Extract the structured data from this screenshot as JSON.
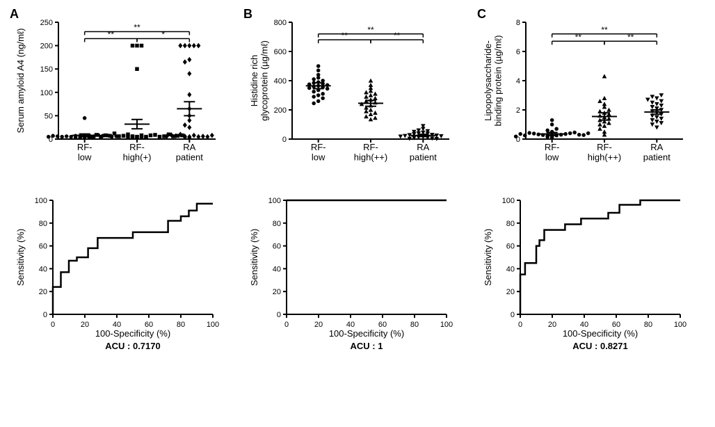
{
  "panels": {
    "A": {
      "label": "A",
      "scatter": {
        "type": "scatter",
        "ylabel": "Serum amyloid A4 (ng/mℓ)",
        "categories": [
          "RF-\nlow",
          "RF-\nhigh(+)",
          "RA\npatient"
        ],
        "ylim": [
          0,
          250
        ],
        "ytick": 50,
        "sig_lines": [
          {
            "from": 0,
            "to": 2,
            "y": 230,
            "label": "**"
          },
          {
            "from": 0,
            "to": 1,
            "y": 215,
            "label": "**"
          },
          {
            "from": 1,
            "to": 2,
            "y": 215,
            "label": "*"
          }
        ],
        "means": [
          8,
          32,
          65
        ],
        "sem": [
          3,
          10,
          15
        ],
        "markers": [
          "circle",
          "square",
          "diamond"
        ],
        "data": [
          [
            5,
            6,
            4,
            8,
            45,
            3,
            7,
            6,
            5,
            9,
            4,
            6,
            7,
            5,
            3,
            8,
            6,
            5,
            4,
            7,
            6,
            5
          ],
          [
            5,
            6,
            4,
            8,
            200,
            200,
            200,
            10,
            150,
            5,
            7,
            8,
            6,
            9,
            4,
            3,
            12,
            5,
            7,
            6,
            8,
            10,
            5,
            6,
            9,
            7,
            5,
            4,
            3,
            8
          ],
          [
            200,
            200,
            200,
            200,
            170,
            140,
            95,
            65,
            40,
            25,
            5,
            3,
            6,
            8,
            10,
            4,
            5,
            7,
            6,
            9,
            165,
            200,
            50,
            30,
            5,
            6,
            8
          ]
        ]
      },
      "roc": {
        "type": "line",
        "xlabel": "100-Specificity (%)",
        "ylabel": "Sensitivity (%)",
        "ylim": [
          0,
          100
        ],
        "xlim": [
          0,
          100
        ],
        "tick": 20,
        "auc_label": "ACU : 0.7170",
        "points": [
          [
            0,
            0
          ],
          [
            0,
            24
          ],
          [
            5,
            37
          ],
          [
            10,
            47
          ],
          [
            15,
            50
          ],
          [
            22,
            58
          ],
          [
            28,
            67
          ],
          [
            45,
            67
          ],
          [
            50,
            72
          ],
          [
            70,
            72
          ],
          [
            72,
            82
          ],
          [
            80,
            86
          ],
          [
            85,
            91
          ],
          [
            90,
            97
          ],
          [
            100,
            97
          ]
        ]
      }
    },
    "B": {
      "label": "B",
      "scatter": {
        "type": "scatter",
        "ylabel": "Histidine rich\nglycoprotein (µg/mℓ)",
        "categories": [
          "RF-\nlow",
          "RF-\nhigh(++)",
          "RA\npatient"
        ],
        "ylim": [
          0,
          800
        ],
        "ytick": 200,
        "sig_lines": [
          {
            "from": 0,
            "to": 2,
            "y": 720,
            "label": "**"
          },
          {
            "from": 0,
            "to": 1,
            "y": 680,
            "label": "**"
          },
          {
            "from": 1,
            "to": 2,
            "y": 680,
            "label": "**"
          }
        ],
        "means": [
          365,
          245,
          25
        ],
        "sem": [
          20,
          20,
          8
        ],
        "markers": [
          "circle",
          "triangle",
          "triangle-down"
        ],
        "data": [
          [
            500,
            470,
            440,
            420,
            410,
            400,
            390,
            385,
            380,
            375,
            370,
            365,
            360,
            355,
            350,
            345,
            335,
            325,
            310,
            300,
            290,
            280,
            260,
            245
          ],
          [
            400,
            370,
            350,
            330,
            320,
            310,
            300,
            290,
            280,
            270,
            260,
            250,
            240,
            230,
            215,
            200,
            190,
            180,
            170,
            155,
            145,
            135
          ],
          [
            90,
            70,
            60,
            55,
            50,
            45,
            40,
            38,
            35,
            30,
            28,
            25,
            22,
            20,
            18,
            15,
            12,
            10,
            8,
            5,
            3,
            2
          ]
        ]
      },
      "roc": {
        "type": "line",
        "xlabel": "100-Specificity (%)",
        "ylabel": "Sensitivity (%)",
        "ylim": [
          0,
          100
        ],
        "xlim": [
          0,
          100
        ],
        "tick": 20,
        "auc_label": "ACU : 1",
        "points": [
          [
            0,
            100
          ],
          [
            100,
            100
          ]
        ]
      }
    },
    "C": {
      "label": "C",
      "scatter": {
        "type": "scatter",
        "ylabel": "Lipopolysaccharide-\nbinding protein (µg/mℓ)",
        "categories": [
          "RF-\nlow",
          "RF-\nhigh(++)",
          "RA\npatient"
        ],
        "ylim": [
          0,
          8
        ],
        "ytick": 2,
        "sig_lines": [
          {
            "from": 0,
            "to": 2,
            "y": 7.2,
            "label": "**"
          },
          {
            "from": 0,
            "to": 1,
            "y": 6.7,
            "label": "**"
          },
          {
            "from": 1,
            "to": 2,
            "y": 6.7,
            "label": "**"
          }
        ],
        "means": [
          0.35,
          1.55,
          1.85
        ],
        "sem": [
          0.1,
          0.25,
          0.15
        ],
        "markers": [
          "circle",
          "triangle",
          "triangle-down"
        ],
        "data": [
          [
            0.1,
            0.15,
            0.2,
            0.22,
            0.25,
            0.28,
            0.3,
            0.32,
            0.35,
            0.38,
            0.4,
            0.42,
            0.45,
            0.5,
            0.6,
            0.7,
            1.0,
            1.3,
            0.25,
            0.3,
            0.35,
            0.28,
            0.18,
            0.4
          ],
          [
            0.3,
            0.5,
            0.7,
            0.9,
            1.0,
            1.1,
            1.2,
            1.3,
            1.4,
            1.5,
            1.6,
            1.7,
            1.8,
            1.9,
            2.0,
            2.2,
            2.4,
            2.6,
            2.8,
            4.3
          ],
          [
            0.8,
            1.0,
            1.1,
            1.2,
            1.3,
            1.4,
            1.5,
            1.6,
            1.7,
            1.8,
            1.9,
            2.0,
            2.1,
            2.2,
            2.3,
            2.4,
            2.5,
            2.6,
            2.7,
            2.8,
            2.9,
            3.0
          ]
        ]
      },
      "roc": {
        "type": "line",
        "xlabel": "100-Specificity (%)",
        "ylabel": "Sensitivity (%)",
        "ylim": [
          0,
          100
        ],
        "xlim": [
          0,
          100
        ],
        "tick": 20,
        "auc_label": "ACU : 0.8271",
        "points": [
          [
            0,
            0
          ],
          [
            0,
            35
          ],
          [
            3,
            45
          ],
          [
            10,
            60
          ],
          [
            12,
            65
          ],
          [
            15,
            74
          ],
          [
            25,
            74
          ],
          [
            28,
            79
          ],
          [
            35,
            79
          ],
          [
            38,
            84
          ],
          [
            50,
            84
          ],
          [
            55,
            89
          ],
          [
            60,
            89
          ],
          [
            62,
            96
          ],
          [
            72,
            96
          ],
          [
            75,
            100
          ],
          [
            100,
            100
          ]
        ]
      }
    }
  },
  "style": {
    "axis_color": "#000000",
    "marker_color": "#000000",
    "label_fontsize": 13,
    "tick_fontsize": 11,
    "panel_fontsize": 18,
    "scatter_width": 300,
    "scatter_height": 230,
    "roc_width": 300,
    "roc_height": 230,
    "marker_size": 5.5
  }
}
